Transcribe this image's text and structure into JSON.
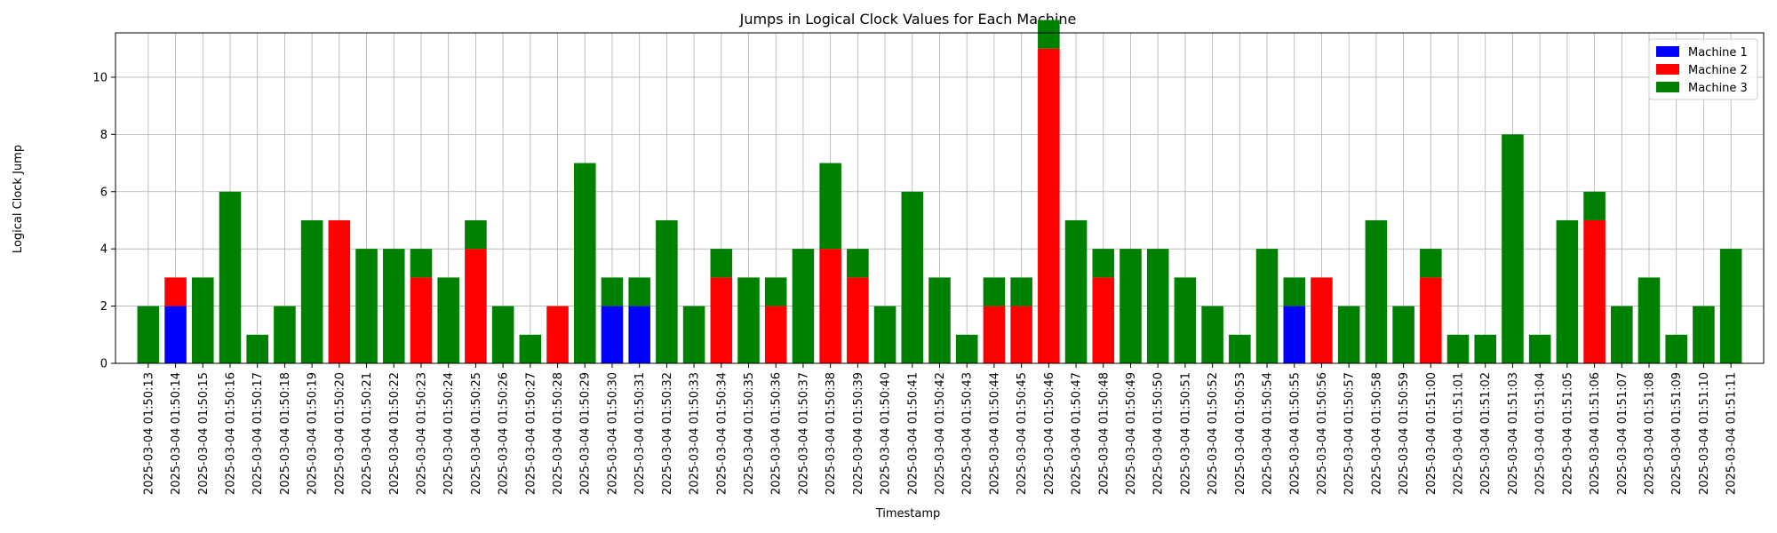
{
  "chart_data": {
    "type": "bar",
    "stacked": true,
    "title": "Jumps in Logical Clock Values for Each Machine",
    "xlabel": "Timestamp",
    "ylabel": "Logical Clock Jump",
    "ylim": [
      0,
      11.55
    ],
    "yticks": [
      0,
      2,
      4,
      6,
      8,
      10
    ],
    "grid": true,
    "legend_position": "top-right",
    "categories": [
      "2025-03-04 01:50:13",
      "2025-03-04 01:50:14",
      "2025-03-04 01:50:15",
      "2025-03-04 01:50:16",
      "2025-03-04 01:50:17",
      "2025-03-04 01:50:18",
      "2025-03-04 01:50:19",
      "2025-03-04 01:50:20",
      "2025-03-04 01:50:21",
      "2025-03-04 01:50:22",
      "2025-03-04 01:50:23",
      "2025-03-04 01:50:24",
      "2025-03-04 01:50:25",
      "2025-03-04 01:50:26",
      "2025-03-04 01:50:27",
      "2025-03-04 01:50:28",
      "2025-03-04 01:50:29",
      "2025-03-04 01:50:30",
      "2025-03-04 01:50:31",
      "2025-03-04 01:50:32",
      "2025-03-04 01:50:33",
      "2025-03-04 01:50:34",
      "2025-03-04 01:50:35",
      "2025-03-04 01:50:36",
      "2025-03-04 01:50:37",
      "2025-03-04 01:50:38",
      "2025-03-04 01:50:39",
      "2025-03-04 01:50:40",
      "2025-03-04 01:50:41",
      "2025-03-04 01:50:42",
      "2025-03-04 01:50:43",
      "2025-03-04 01:50:44",
      "2025-03-04 01:50:45",
      "2025-03-04 01:50:46",
      "2025-03-04 01:50:47",
      "2025-03-04 01:50:48",
      "2025-03-04 01:50:49",
      "2025-03-04 01:50:50",
      "2025-03-04 01:50:51",
      "2025-03-04 01:50:52",
      "2025-03-04 01:50:53",
      "2025-03-04 01:50:54",
      "2025-03-04 01:50:55",
      "2025-03-04 01:50:56",
      "2025-03-04 01:50:57",
      "2025-03-04 01:50:58",
      "2025-03-04 01:50:59",
      "2025-03-04 01:51:00",
      "2025-03-04 01:51:01",
      "2025-03-04 01:51:02",
      "2025-03-04 01:51:03",
      "2025-03-04 01:51:04",
      "2025-03-04 01:51:05",
      "2025-03-04 01:51:06",
      "2025-03-04 01:51:07",
      "2025-03-04 01:51:08",
      "2025-03-04 01:51:09",
      "2025-03-04 01:51:10",
      "2025-03-04 01:51:11"
    ],
    "series": [
      {
        "name": "Machine 1",
        "color": "#0000ff",
        "values": [
          0,
          2,
          0,
          0,
          0,
          0,
          0,
          0,
          0,
          0,
          0,
          0,
          0,
          0,
          0,
          0,
          0,
          2,
          2,
          0,
          0,
          0,
          0,
          0,
          0,
          0,
          0,
          0,
          0,
          0,
          0,
          0,
          0,
          0,
          0,
          0,
          0,
          0,
          0,
          0,
          0,
          0,
          2,
          0,
          0,
          0,
          0,
          0,
          0,
          0,
          0,
          0,
          0,
          0,
          0,
          0,
          0,
          0,
          0
        ]
      },
      {
        "name": "Machine 2",
        "color": "#ff0000",
        "values": [
          0,
          1,
          0,
          0,
          0,
          0,
          0,
          5,
          0,
          0,
          3,
          0,
          4,
          0,
          0,
          2,
          0,
          0,
          0,
          0,
          0,
          3,
          0,
          2,
          0,
          4,
          3,
          0,
          0,
          0,
          0,
          2,
          2,
          11,
          0,
          3,
          0,
          0,
          0,
          0,
          0,
          0,
          0,
          3,
          0,
          0,
          0,
          3,
          0,
          0,
          0,
          0,
          0,
          5,
          0,
          0,
          0,
          0,
          0
        ]
      },
      {
        "name": "Machine 3",
        "color": "#008000",
        "values": [
          2,
          0,
          3,
          6,
          1,
          2,
          5,
          0,
          4,
          4,
          1,
          3,
          1,
          2,
          1,
          0,
          7,
          1,
          1,
          5,
          2,
          1,
          3,
          1,
          4,
          3,
          1,
          2,
          6,
          3,
          1,
          1,
          1,
          1,
          5,
          1,
          4,
          4,
          3,
          2,
          1,
          4,
          1,
          0,
          2,
          5,
          2,
          1,
          1,
          1,
          8,
          1,
          5,
          1,
          2,
          3,
          1,
          2,
          4
        ]
      }
    ]
  }
}
